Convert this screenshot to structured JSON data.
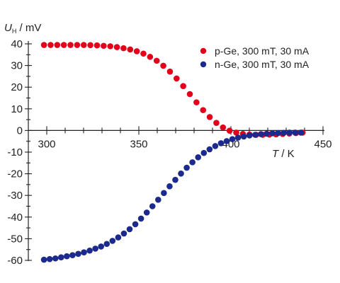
{
  "chart_data": {
    "type": "scatter",
    "xlabel": {
      "symbol": "T",
      "unit": " / K"
    },
    "ylabel": {
      "symbol": "U",
      "subscript": "H",
      "unit": " / mV"
    },
    "xlim": [
      300,
      450
    ],
    "ylim": [
      -60,
      40
    ],
    "x_ticks": [
      "300",
      "350",
      "400",
      "450"
    ],
    "y_ticks": [
      "40",
      "30",
      "20",
      "10",
      "0",
      "-10",
      "-20",
      "-30",
      "-40",
      "-50",
      "-60"
    ],
    "legend_position": "top-right",
    "grid": false,
    "series": [
      {
        "name": "p-Ge, 300 mT, 30 mA",
        "color": "#e2001a",
        "x": [
          298.5,
          302.1,
          305.7,
          309.3,
          312.9,
          316.5,
          320.1,
          323.7,
          327.3,
          330.9,
          334.5,
          338.1,
          341.7,
          345.3,
          348.9,
          352.5,
          356.1,
          359.7,
          363.3,
          366.9,
          370.5,
          374.1,
          377.7,
          381.3,
          384.9,
          388.5,
          392.1,
          395.7,
          399.3,
          402.9,
          406.5,
          410.1,
          413.7,
          417.3,
          420.9,
          424.5,
          428.1,
          431.7,
          435.3,
          438.9
        ],
        "y": [
          39.5,
          39.5,
          39.5,
          39.5,
          39.5,
          39.5,
          39.5,
          39.4,
          39.3,
          39.1,
          38.9,
          38.5,
          38.0,
          37.4,
          36.6,
          35.5,
          34.0,
          32.2,
          29.9,
          27.2,
          24.0,
          20.5,
          16.8,
          13.0,
          9.4,
          6.2,
          3.5,
          1.4,
          -0.1,
          -1.0,
          -1.6,
          -1.9,
          -2.0,
          -2.0,
          -1.9,
          -1.8,
          -1.6,
          -1.4,
          -1.2,
          -1.0
        ]
      },
      {
        "name": "n-Ge, 300 mT, 30 mA",
        "color": "#1b2a8c",
        "x": [
          298.5,
          301.6,
          304.7,
          307.8,
          310.9,
          314.0,
          317.1,
          320.2,
          323.3,
          326.4,
          329.5,
          332.6,
          335.7,
          338.8,
          341.9,
          345.0,
          348.1,
          351.2,
          354.3,
          357.4,
          360.5,
          363.6,
          366.7,
          369.8,
          372.9,
          376.0,
          379.1,
          382.2,
          385.3,
          388.4,
          391.5,
          394.6,
          397.7,
          400.8,
          403.9,
          407.0,
          410.1,
          413.2,
          416.3,
          419.4,
          422.5,
          425.6,
          428.7,
          431.8,
          434.9,
          438.0
        ],
        "y": [
          -59.7,
          -59.4,
          -59.1,
          -58.6,
          -58.1,
          -57.6,
          -57.0,
          -56.3,
          -55.5,
          -54.6,
          -53.6,
          -52.4,
          -51.0,
          -49.4,
          -47.6,
          -45.6,
          -43.3,
          -40.7,
          -37.9,
          -35.0,
          -32.0,
          -28.9,
          -25.8,
          -22.8,
          -19.9,
          -17.2,
          -14.7,
          -12.4,
          -10.4,
          -8.7,
          -7.2,
          -5.9,
          -4.9,
          -4.0,
          -3.3,
          -2.8,
          -2.3,
          -2.0,
          -1.7,
          -1.5,
          -1.3,
          -1.2,
          -1.1,
          -1.0,
          -1.0,
          -1.0
        ]
      }
    ]
  }
}
